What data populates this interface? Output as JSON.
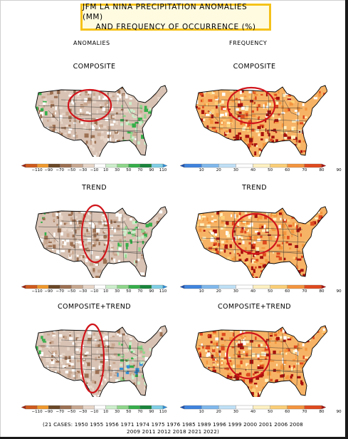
{
  "title": {
    "line1": "JFM LA NINA PRECIPITATION ANOMALIES (MM)",
    "line2": "AND FREQUENCY OF OCCURRENCE (%)"
  },
  "columns": {
    "left": "ANOMALIES",
    "right": "FREQUENCY"
  },
  "rows": [
    {
      "left_label": "COMPOSITE",
      "right_label": "COMPOSITE"
    },
    {
      "left_label": "TREND",
      "right_label": "TREND"
    },
    {
      "left_label": "COMPOSITE+TREND",
      "right_label": "COMPOSITE+TREND"
    }
  ],
  "anomaly_scale": {
    "ticks": [
      "−110",
      "−90",
      "−70",
      "−50",
      "−30",
      "−10",
      "10",
      "30",
      "50",
      "70",
      "90",
      "110"
    ],
    "colors": [
      "#a0230f",
      "#cf5a1d",
      "#f0992e",
      "#6a4726",
      "#9c7052",
      "#c8a790",
      "#e7d6c9",
      "#ffffff",
      "#cdeecb",
      "#8fd68b",
      "#36ae4a",
      "#19853c",
      "#7fcfe6",
      "#2f8fd8"
    ]
  },
  "frequency_scale": {
    "ticks": [
      "10",
      "20",
      "30",
      "40",
      "50",
      "60",
      "70",
      "80",
      "90"
    ],
    "colors": [
      "#1b4fb0",
      "#3f84de",
      "#7fb8ec",
      "#bfe0f6",
      "#ffffff",
      "#fff1c2",
      "#fbcf78",
      "#f3953e",
      "#df4a1e",
      "#a8110d"
    ]
  },
  "cases": {
    "line1": "(21 CASES:  1950  1955  1956  1971  1974  1975  1976  1985  1989  1996  1999  2000  2001  2006  2008",
    "line2": "2009  2011  2012  2018  2021  2022)"
  }
}
